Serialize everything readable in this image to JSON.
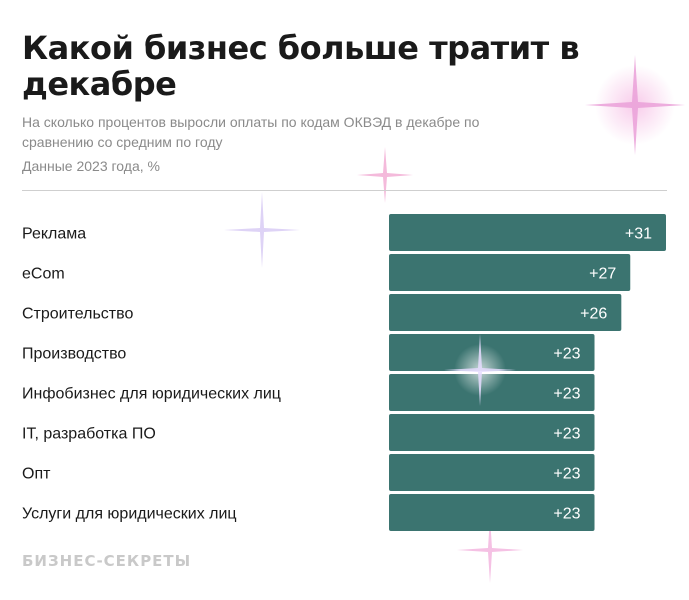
{
  "title": "Какой бизнес больше тратит в декабре",
  "subtitle": "На сколько процентов выросли оплаты по кодам ОКВЭД в декабре по сравнению со средним по году",
  "note": "Данные 2023 года, %",
  "logo_text": "БИЗНЕС-СЕКРЕТЫ",
  "colors": {
    "bar": "#3b7470",
    "sparkle_pink": "#f2a6d8",
    "sparkle_lavender": "#cdb8f0"
  },
  "chart_data": {
    "type": "bar",
    "orientation": "horizontal",
    "categories": [
      "Реклама",
      "eCom",
      "Строительство",
      "Производство",
      "Инфобизнес для юридических лиц",
      "IT, разработка ПО",
      "Опт",
      "Услуги для юридических лиц"
    ],
    "values": [
      31,
      27,
      26,
      23,
      23,
      23,
      23,
      23
    ],
    "value_labels": [
      "+31",
      "+27",
      "+26",
      "+23",
      "+23",
      "+23",
      "+23",
      "+23"
    ],
    "xlim": [
      0,
      31
    ],
    "grid": false,
    "legend": false
  }
}
